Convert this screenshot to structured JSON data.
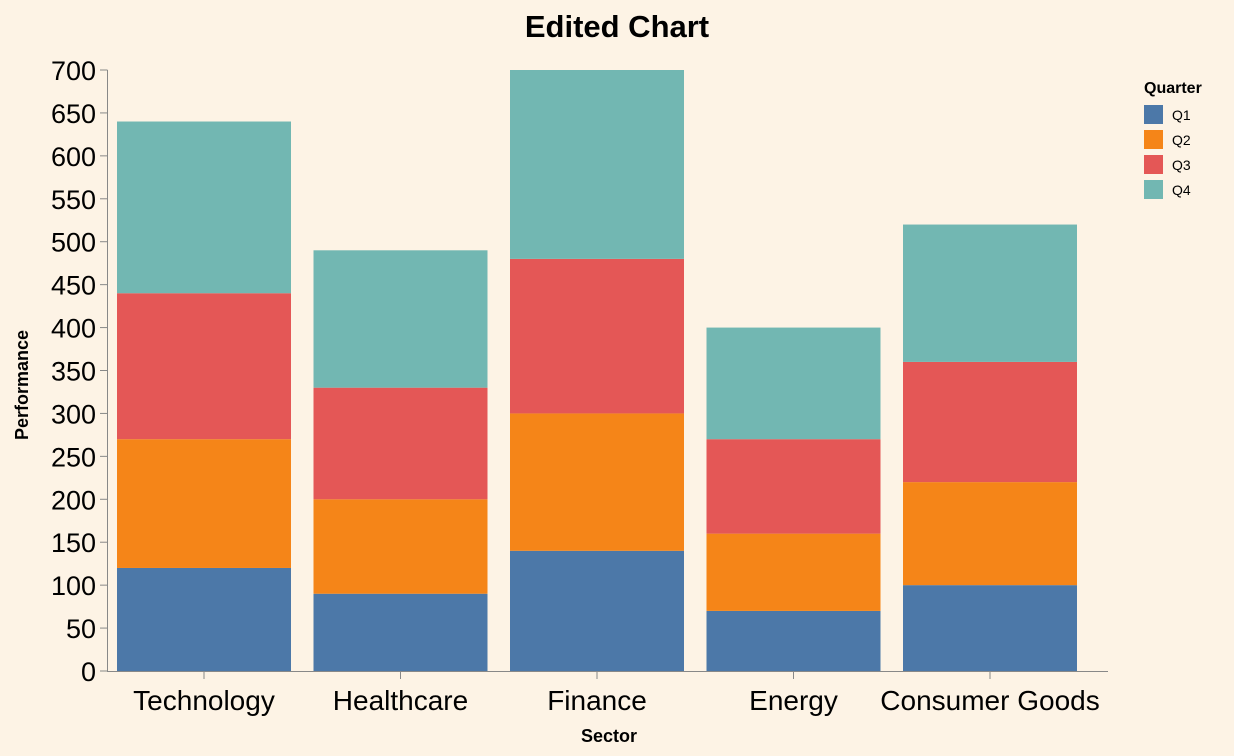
{
  "chart_data": {
    "type": "bar",
    "stacked": true,
    "title": "Edited Chart",
    "xlabel": "Sector",
    "ylabel": "Performance",
    "categories": [
      "Technology",
      "Healthcare",
      "Finance",
      "Energy",
      "Consumer Goods"
    ],
    "series": [
      {
        "name": "Q1",
        "color": "#4c78a8",
        "values": [
          120,
          90,
          140,
          70,
          100
        ]
      },
      {
        "name": "Q2",
        "color": "#f58518",
        "values": [
          150,
          110,
          160,
          90,
          120
        ]
      },
      {
        "name": "Q3",
        "color": "#e45756",
        "values": [
          170,
          130,
          180,
          110,
          140
        ]
      },
      {
        "name": "Q4",
        "color": "#72b7b2",
        "values": [
          200,
          160,
          220,
          130,
          160
        ]
      }
    ],
    "ylim": [
      0,
      700
    ],
    "yticks": [
      0,
      50,
      100,
      150,
      200,
      250,
      300,
      350,
      400,
      450,
      500,
      550,
      600,
      650,
      700
    ],
    "grid": false,
    "legend": {
      "title": "Quarter",
      "position": "right"
    }
  }
}
